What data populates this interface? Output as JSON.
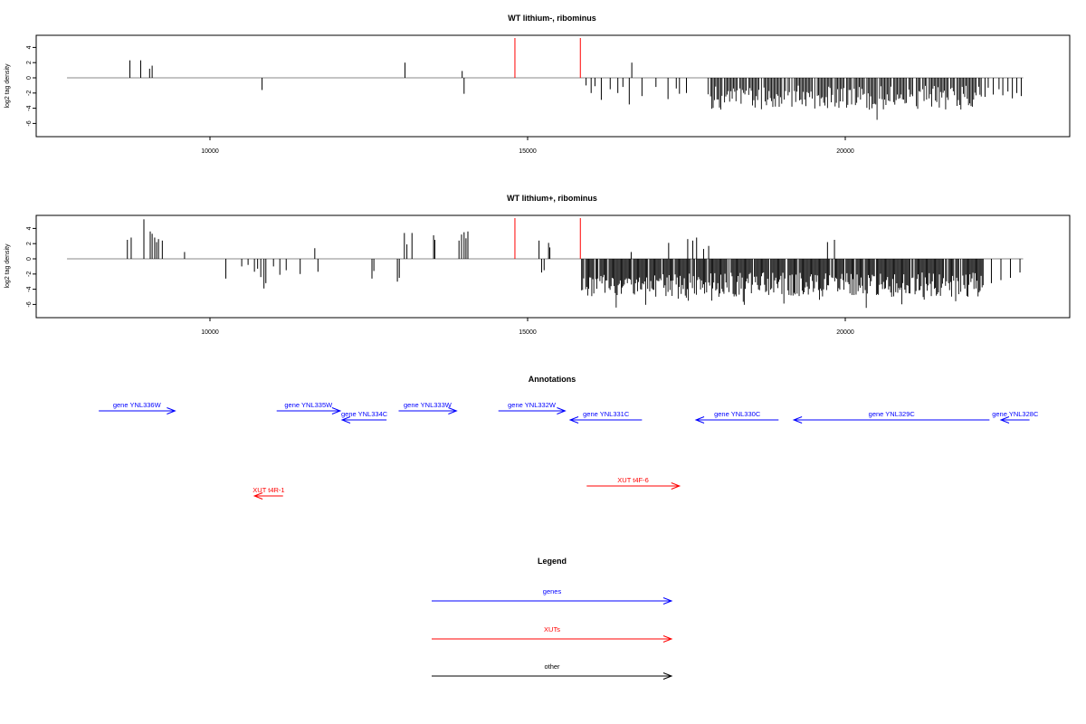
{
  "chart_data": [
    {
      "type": "bar",
      "title": "WT lithium-, ribominus",
      "xlabel": "",
      "ylabel": "log2 tag density",
      "xlim": [
        7750,
        23500
      ],
      "ylim": [
        -7.5,
        5.5
      ],
      "xticks": [
        10000,
        15000,
        20000
      ],
      "yticks": [
        4,
        2,
        0,
        -2,
        -4,
        -6
      ],
      "baseline": {
        "start": 7750,
        "end": 22800,
        "y": 0
      },
      "markers": [
        14800,
        15830
      ],
      "bars": [
        [
          8740,
          2.3
        ],
        [
          8910,
          2.3
        ],
        [
          9050,
          1.2
        ],
        [
          9090,
          1.6
        ],
        [
          10820,
          -1.6
        ],
        [
          13070,
          2.0
        ],
        [
          13970,
          0.9
        ],
        [
          14000,
          -2.1
        ],
        [
          15920,
          -1.0
        ],
        [
          16000,
          -2.0
        ],
        [
          16060,
          -1.1
        ],
        [
          16160,
          -2.9
        ],
        [
          16300,
          -1.5
        ],
        [
          16420,
          -2.0
        ],
        [
          16500,
          -1.2
        ],
        [
          16600,
          -3.5
        ],
        [
          16640,
          2.0
        ],
        [
          16800,
          -2.4
        ],
        [
          17020,
          -1.2
        ],
        [
          17210,
          -2.8
        ],
        [
          17340,
          -1.4
        ],
        [
          17390,
          -2.1
        ],
        [
          17500,
          -2.0
        ],
        [
          22200,
          -2.5
        ],
        [
          22250,
          -1.3
        ],
        [
          22330,
          -2.2
        ],
        [
          22420,
          -1.5
        ],
        [
          22480,
          -2.3
        ],
        [
          22560,
          -1.8
        ],
        [
          22630,
          -2.7
        ],
        [
          22700,
          -2.0
        ],
        [
          22770,
          -2.4
        ]
      ],
      "dense_region": {
        "x_start": 17800,
        "x_end": 22150,
        "step": 20,
        "y_min": -5.6,
        "y_max": -0.4,
        "avg": -2.6
      }
    },
    {
      "type": "bar",
      "title": "WT lithium+, ribominus",
      "xlabel": "",
      "ylabel": "log2 tag density",
      "xlim": [
        7750,
        23500
      ],
      "ylim": [
        -7.5,
        5.5
      ],
      "xticks": [
        10000,
        15000,
        20000
      ],
      "yticks": [
        4,
        2,
        0,
        -2,
        -4,
        -6
      ],
      "baseline": {
        "start": 7750,
        "end": 22800,
        "y": 0
      },
      "markers": [
        14800,
        15830
      ],
      "bars": [
        [
          8700,
          2.5
        ],
        [
          8760,
          2.8
        ],
        [
          8960,
          5.2
        ],
        [
          9060,
          3.6
        ],
        [
          9090,
          3.3
        ],
        [
          9130,
          2.8
        ],
        [
          9160,
          2.2
        ],
        [
          9190,
          2.6
        ],
        [
          9250,
          2.4
        ],
        [
          9600,
          0.9
        ],
        [
          10250,
          -2.6
        ],
        [
          10500,
          -1.0
        ],
        [
          10600,
          -0.8
        ],
        [
          10700,
          -1.7
        ],
        [
          10750,
          -1.3
        ],
        [
          10800,
          -2.4
        ],
        [
          10850,
          -3.9
        ],
        [
          10880,
          -3.2
        ],
        [
          11000,
          -1.0
        ],
        [
          11100,
          -2.1
        ],
        [
          11200,
          -1.5
        ],
        [
          11420,
          -2.0
        ],
        [
          11650,
          1.4
        ],
        [
          11700,
          -1.7
        ],
        [
          12550,
          -2.6
        ],
        [
          12580,
          -1.6
        ],
        [
          12950,
          -3.0
        ],
        [
          12980,
          -2.5
        ],
        [
          13060,
          3.4
        ],
        [
          13100,
          1.9
        ],
        [
          13180,
          3.4
        ],
        [
          13520,
          3.1
        ],
        [
          13540,
          2.5
        ],
        [
          13920,
          2.4
        ],
        [
          13960,
          3.2
        ],
        [
          14000,
          3.5
        ],
        [
          14030,
          2.7
        ],
        [
          14060,
          3.6
        ],
        [
          15180,
          2.4
        ],
        [
          15220,
          -1.8
        ],
        [
          15260,
          -1.5
        ],
        [
          15330,
          2.1
        ],
        [
          15350,
          1.5
        ],
        [
          16630,
          0.9
        ],
        [
          17220,
          2.1
        ],
        [
          17520,
          2.6
        ],
        [
          17600,
          2.4
        ],
        [
          17660,
          2.8
        ],
        [
          17770,
          1.3
        ],
        [
          17850,
          1.7
        ],
        [
          19720,
          2.2
        ],
        [
          19830,
          2.5
        ],
        [
          22300,
          -3.2
        ],
        [
          22450,
          -2.8
        ],
        [
          22600,
          -2.5
        ],
        [
          22750,
          -1.8
        ]
      ],
      "dense_region": {
        "x_start": 15850,
        "x_end": 22200,
        "step": 16,
        "y_min": -7.2,
        "y_max": -0.3,
        "avg": -3.4
      }
    },
    {
      "type": "annotation_track",
      "title": "Annotations",
      "features": [
        {
          "label": "gene YNL336W",
          "kind": "gene",
          "strand": "+",
          "start": 8250,
          "end": 9450,
          "row": 0
        },
        {
          "label": "gene YNL335W",
          "kind": "gene",
          "strand": "+",
          "start": 11050,
          "end": 12050,
          "row": 0
        },
        {
          "label": "gene YNL334C",
          "kind": "gene",
          "strand": "-",
          "start": 12080,
          "end": 12780,
          "row": 1
        },
        {
          "label": "gene YNL333W",
          "kind": "gene",
          "strand": "+",
          "start": 12970,
          "end": 13880,
          "row": 0
        },
        {
          "label": "gene YNL332W",
          "kind": "gene",
          "strand": "+",
          "start": 14540,
          "end": 15590,
          "row": 0
        },
        {
          "label": "gene YNL331C",
          "kind": "gene",
          "strand": "-",
          "start": 15670,
          "end": 16800,
          "row": 1
        },
        {
          "label": "gene YNL330C",
          "kind": "gene",
          "strand": "-",
          "start": 17650,
          "end": 18950,
          "row": 1
        },
        {
          "label": "gene YNL329C",
          "kind": "gene",
          "strand": "-",
          "start": 19190,
          "end": 22270,
          "row": 1
        },
        {
          "label": "gene YNL328C",
          "kind": "gene",
          "strand": "-",
          "start": 22450,
          "end": 22900,
          "row": 1
        },
        {
          "label": "XUT t4R-1",
          "kind": "xut",
          "strand": "-",
          "start": 10700,
          "end": 11150,
          "row": 3
        },
        {
          "label": "XUT t4F-6",
          "kind": "xut",
          "strand": "+",
          "start": 15930,
          "end": 17390,
          "row": 2
        }
      ]
    }
  ],
  "legend": {
    "title": "Legend",
    "items": [
      {
        "label": "genes",
        "color": "#0000ff"
      },
      {
        "label": "XUTs",
        "color": "#ff0000"
      },
      {
        "label": "other",
        "color": "#000000"
      }
    ]
  },
  "colors": {
    "gene": "#0000ff",
    "xut": "#ff0000",
    "marker": "#ff0000",
    "baseline": "#a0a0a0",
    "bar": "#000000"
  }
}
